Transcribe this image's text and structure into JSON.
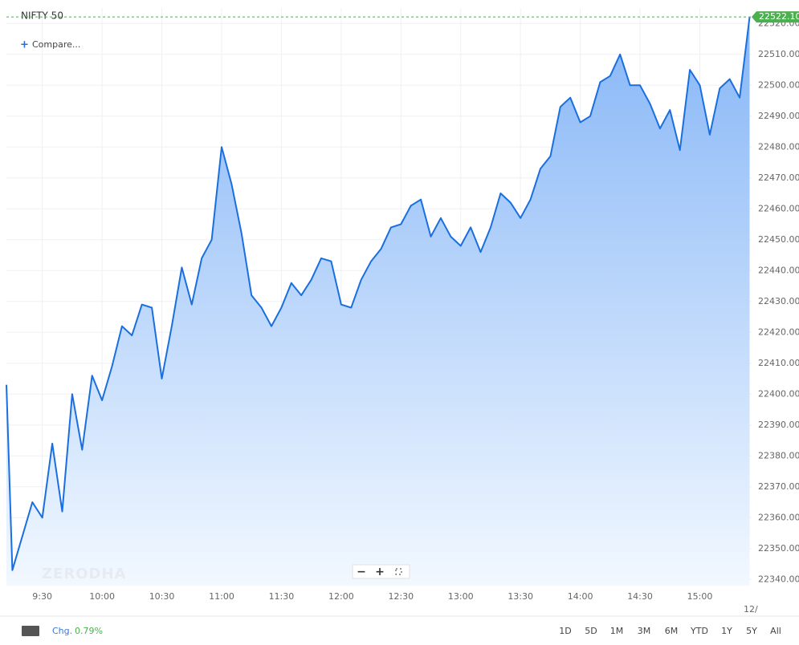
{
  "chart_data": {
    "type": "area",
    "title": "NIFTY 50",
    "compare_label": "Compare...",
    "watermark": "ZERODHA",
    "x": [
      552,
      555,
      565,
      570,
      575,
      580,
      585,
      590,
      595,
      600,
      605,
      610,
      615,
      620,
      625,
      630,
      635,
      640,
      645,
      650,
      655,
      660,
      665,
      670,
      675,
      680,
      685,
      690,
      695,
      700,
      705,
      710,
      715,
      720,
      725,
      730,
      735,
      740,
      745,
      750,
      755,
      760,
      765,
      770,
      775,
      780,
      785,
      790,
      795,
      800,
      805,
      810,
      815,
      820,
      825,
      830,
      835,
      840,
      845,
      850,
      855,
      860,
      865,
      870,
      875,
      880,
      885,
      890,
      895,
      900,
      905,
      910,
      915,
      920,
      925
    ],
    "series": [
      {
        "name": "NIFTY 50",
        "color": "#1a6fe0",
        "values": [
          22403,
          22343,
          22365,
          22360,
          22384,
          22362,
          22400,
          22382,
          22406,
          22398,
          22409,
          22422,
          22419,
          22429,
          22428,
          22405,
          22422,
          22441,
          22429,
          22444,
          22450,
          22480,
          22468,
          22452,
          22432,
          22428,
          22422,
          22428,
          22436,
          22432,
          22437,
          22444,
          22443,
          22429,
          22428,
          22437,
          22443,
          22447,
          22454,
          22455,
          22461,
          22463,
          22451,
          22457,
          22451,
          22448,
          22454,
          22446,
          22454,
          22465,
          22462,
          22457,
          22463,
          22473,
          22477,
          22493,
          22496,
          22488,
          22490,
          22501,
          22503,
          22510,
          22500,
          22500,
          22494,
          22486,
          22492,
          22479,
          22505,
          22500,
          22484,
          22499,
          22502,
          22496,
          22522.1
        ]
      }
    ],
    "xlim": [
      552,
      926
    ],
    "xticks": [
      {
        "value": 570,
        "label": "9:30"
      },
      {
        "value": 600,
        "label": "10:00"
      },
      {
        "value": 630,
        "label": "10:30"
      },
      {
        "value": 660,
        "label": "11:00"
      },
      {
        "value": 690,
        "label": "11:30"
      },
      {
        "value": 720,
        "label": "12:00"
      },
      {
        "value": 750,
        "label": "12:30"
      },
      {
        "value": 780,
        "label": "13:00"
      },
      {
        "value": 810,
        "label": "13:30"
      },
      {
        "value": 840,
        "label": "14:00"
      },
      {
        "value": 870,
        "label": "14:30"
      },
      {
        "value": 900,
        "label": "15:00"
      }
    ],
    "date_label": "12/",
    "ylim": [
      22338,
      22525
    ],
    "yticks": [
      {
        "value": 22340,
        "label": "22340.00"
      },
      {
        "value": 22350,
        "label": "22350.00"
      },
      {
        "value": 22360,
        "label": "22360.00"
      },
      {
        "value": 22370,
        "label": "22370.00"
      },
      {
        "value": 22380,
        "label": "22380.00"
      },
      {
        "value": 22390,
        "label": "22390.00"
      },
      {
        "value": 22400,
        "label": "22400.00"
      },
      {
        "value": 22410,
        "label": "22410.00"
      },
      {
        "value": 22420,
        "label": "22420.00"
      },
      {
        "value": 22430,
        "label": "22430.00"
      },
      {
        "value": 22440,
        "label": "22440.00"
      },
      {
        "value": 22450,
        "label": "22450.00"
      },
      {
        "value": 22460,
        "label": "22460.00"
      },
      {
        "value": 22470,
        "label": "22470.00"
      },
      {
        "value": 22480,
        "label": "22480.00"
      },
      {
        "value": 22490,
        "label": "22490.00"
      },
      {
        "value": 22500,
        "label": "22500.00"
      },
      {
        "value": 22510,
        "label": "22510.00"
      },
      {
        "value": 22520,
        "label": "22520.00"
      }
    ],
    "grid": true,
    "last_price": {
      "value": 22522.1,
      "label": "22522.10",
      "color": "#4caf50"
    },
    "change_label": "Chg.",
    "change": {
      "value": 0.79,
      "label": "0.79%"
    },
    "ranges": [
      "1D",
      "5D",
      "1M",
      "3M",
      "6M",
      "YTD",
      "1Y",
      "5Y",
      "All"
    ]
  }
}
